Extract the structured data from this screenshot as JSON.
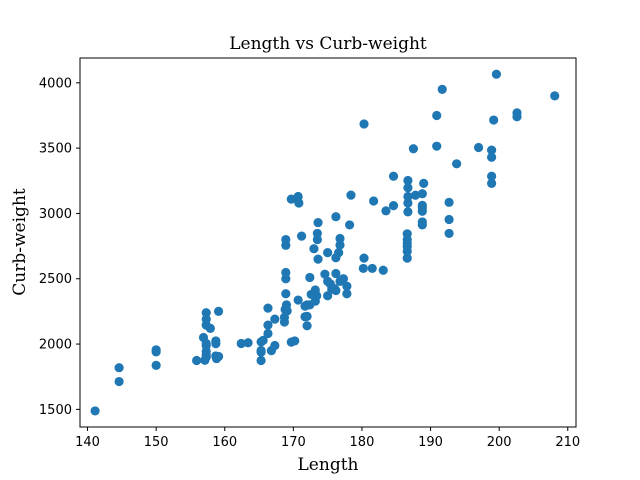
{
  "chart_data": {
    "type": "scatter",
    "title": "Length vs Curb-weight",
    "xlabel": "Length",
    "ylabel": "Curb-weight",
    "xlim": [
      138.9,
      211.2
    ],
    "ylim": [
      1365,
      4190
    ],
    "xticks": [
      "140",
      "150",
      "160",
      "170",
      "180",
      "190",
      "200",
      "210"
    ],
    "yticks": [
      "1500",
      "2000",
      "2500",
      "3000",
      "3500",
      "4000"
    ],
    "grid": false,
    "marker_color": "#1f77b4",
    "series": [
      {
        "points": [
          [
            141.1,
            1488
          ],
          [
            144.6,
            1713
          ],
          [
            144.6,
            1819
          ],
          [
            150.0,
            1837
          ],
          [
            150.0,
            1940
          ],
          [
            150.0,
            1956
          ],
          [
            155.9,
            1874
          ],
          [
            156.9,
            2050
          ],
          [
            157.1,
            1876
          ],
          [
            157.3,
            1900
          ],
          [
            157.3,
            1918
          ],
          [
            157.3,
            1944
          ],
          [
            157.3,
            1989
          ],
          [
            157.3,
            2004
          ],
          [
            157.3,
            2145
          ],
          [
            157.3,
            2190
          ],
          [
            157.3,
            2240
          ],
          [
            157.9,
            2120
          ],
          [
            158.7,
            1909
          ],
          [
            158.7,
            2024
          ],
          [
            158.7,
            2003
          ],
          [
            158.8,
            1889
          ],
          [
            159.1,
            1905
          ],
          [
            159.1,
            2250
          ],
          [
            162.4,
            2004
          ],
          [
            163.4,
            2010
          ],
          [
            165.3,
            1874
          ],
          [
            165.3,
            1938
          ],
          [
            165.3,
            1951
          ],
          [
            165.3,
            2017
          ],
          [
            165.6,
            2028
          ],
          [
            166.3,
            2081
          ],
          [
            166.3,
            2145
          ],
          [
            166.3,
            2275
          ],
          [
            166.8,
            1950
          ],
          [
            167.3,
            1989
          ],
          [
            167.3,
            2191
          ],
          [
            168.7,
            2169
          ],
          [
            168.7,
            2204
          ],
          [
            168.8,
            2265
          ],
          [
            168.9,
            2385
          ],
          [
            168.9,
            2500
          ],
          [
            168.9,
            2548
          ],
          [
            168.9,
            2756
          ],
          [
            168.9,
            2800
          ],
          [
            169.0,
            2300
          ],
          [
            169.1,
            2254
          ],
          [
            169.7,
            2015
          ],
          [
            169.7,
            3110
          ],
          [
            170.2,
            2024
          ],
          [
            170.7,
            2337
          ],
          [
            170.7,
            3130
          ],
          [
            170.8,
            3080
          ],
          [
            171.2,
            2826
          ],
          [
            171.7,
            2209
          ],
          [
            171.7,
            2290
          ],
          [
            172.0,
            2140
          ],
          [
            172.0,
            2212
          ],
          [
            172.0,
            2300
          ],
          [
            172.4,
            2300
          ],
          [
            172.4,
            2510
          ],
          [
            172.6,
            2380
          ],
          [
            173.0,
            2730
          ],
          [
            173.2,
            2328
          ],
          [
            173.2,
            2414
          ],
          [
            173.4,
            2370
          ],
          [
            173.5,
            2800
          ],
          [
            173.5,
            2847
          ],
          [
            173.6,
            2650
          ],
          [
            173.6,
            2930
          ],
          [
            174.6,
            2535
          ],
          [
            175.0,
            2370
          ],
          [
            175.0,
            2480
          ],
          [
            175.0,
            2700
          ],
          [
            175.4,
            2460
          ],
          [
            175.6,
            2420
          ],
          [
            176.0,
            2425
          ],
          [
            176.2,
            2410
          ],
          [
            176.2,
            2540
          ],
          [
            176.2,
            2661
          ],
          [
            176.2,
            2975
          ],
          [
            176.6,
            2700
          ],
          [
            176.8,
            2480
          ],
          [
            176.8,
            2758
          ],
          [
            176.8,
            2808
          ],
          [
            177.3,
            2500
          ],
          [
            177.8,
            2385
          ],
          [
            177.8,
            2443
          ],
          [
            178.2,
            2912
          ],
          [
            178.4,
            3140
          ],
          [
            180.2,
            2579
          ],
          [
            180.3,
            2658
          ],
          [
            180.3,
            3685
          ],
          [
            181.5,
            2579
          ],
          [
            181.7,
            3095
          ],
          [
            183.1,
            2565
          ],
          [
            183.5,
            3020
          ],
          [
            184.6,
            3060
          ],
          [
            184.6,
            3285
          ],
          [
            186.6,
            2658
          ],
          [
            186.6,
            2710
          ],
          [
            186.6,
            2747
          ],
          [
            186.6,
            2770
          ],
          [
            186.6,
            2800
          ],
          [
            186.6,
            2844
          ],
          [
            186.7,
            3012
          ],
          [
            186.7,
            3080
          ],
          [
            186.7,
            3130
          ],
          [
            186.7,
            3197
          ],
          [
            186.7,
            3252
          ],
          [
            187.5,
            3495
          ],
          [
            187.8,
            3139
          ],
          [
            188.8,
            2912
          ],
          [
            188.8,
            2935
          ],
          [
            188.8,
            3017
          ],
          [
            188.8,
            3045
          ],
          [
            188.8,
            3062
          ],
          [
            188.8,
            3151
          ],
          [
            189.0,
            3230
          ],
          [
            190.9,
            3515
          ],
          [
            190.9,
            3750
          ],
          [
            191.7,
            3950
          ],
          [
            192.7,
            2847
          ],
          [
            192.7,
            2954
          ],
          [
            192.7,
            3085
          ],
          [
            193.8,
            3380
          ],
          [
            197.0,
            3505
          ],
          [
            198.9,
            3230
          ],
          [
            198.9,
            3285
          ],
          [
            198.9,
            3430
          ],
          [
            198.9,
            3485
          ],
          [
            199.2,
            3715
          ],
          [
            199.6,
            4066
          ],
          [
            202.6,
            3740
          ],
          [
            202.6,
            3770
          ],
          [
            208.1,
            3900
          ]
        ]
      }
    ]
  }
}
